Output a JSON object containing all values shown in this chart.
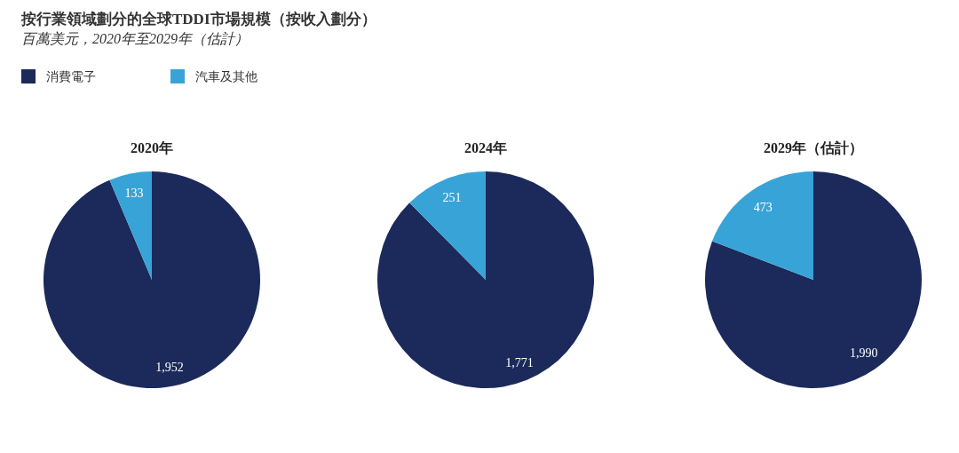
{
  "chart_data": [
    {
      "type": "other",
      "title": "按行業領域劃分的全球TDDI市場規模（按收入劃分）",
      "subtitle": "百萬美元，2020年至2029年（估計）"
    },
    {
      "type": "pie",
      "title": "2020年",
      "categories": [
        "消費電子",
        "汽車及其他"
      ],
      "values": [
        1952,
        133
      ],
      "value_labels": [
        "1,952",
        "133"
      ],
      "colors": [
        "#1b2a5a",
        "#38a3d6"
      ],
      "legend": "top left"
    },
    {
      "type": "pie",
      "title": "2024年",
      "categories": [
        null,
        null
      ],
      "values": [
        1771,
        251
      ],
      "value_labels": [
        "1,771",
        "251"
      ],
      "colors": [
        "#1b2a5a",
        "#38a3d6"
      ]
    },
    {
      "type": "pie",
      "title": "2029年（估計）",
      "categories": [
        null,
        null
      ],
      "values": [
        1990,
        473
      ],
      "value_labels": [
        "1,990",
        "473"
      ],
      "colors": [
        "#1b2a5a",
        "#38a3d6"
      ]
    }
  ]
}
